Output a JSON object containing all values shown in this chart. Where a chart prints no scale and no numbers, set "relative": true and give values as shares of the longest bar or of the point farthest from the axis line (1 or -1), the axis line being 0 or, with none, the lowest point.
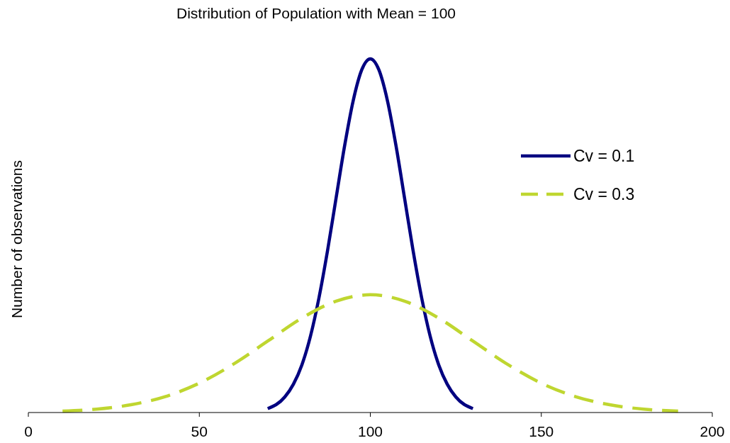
{
  "chart_data": {
    "type": "line",
    "title": "Distribution of Population with Mean = 100",
    "ylabel": "Number of observations",
    "relative": true,
    "xlim": [
      0,
      200
    ],
    "xticks": [
      0,
      50,
      100,
      150,
      200
    ],
    "grid": false,
    "legend": "top right",
    "series": [
      {
        "name": "Cv = 0.1",
        "color": "#000080",
        "line_style": "solid",
        "x": [
          70,
          75,
          77.5,
          80,
          82.5,
          85,
          87.5,
          90,
          92.5,
          95,
          97.5,
          100,
          102.5,
          105,
          107.5,
          110,
          112.5,
          115,
          117.5,
          120,
          122.5,
          125,
          130
        ],
        "values": [
          0.011,
          0.044,
          0.08,
          0.135,
          0.216,
          0.325,
          0.458,
          0.607,
          0.755,
          0.882,
          0.969,
          1,
          0.969,
          0.882,
          0.755,
          0.607,
          0.458,
          0.325,
          0.216,
          0.135,
          0.08,
          0.044,
          0.011
        ]
      },
      {
        "name": "Cv = 0.3",
        "color": "#bfd630",
        "line_style": "dashed",
        "x": [
          10,
          20,
          30,
          40,
          50,
          60,
          70,
          80,
          90,
          100,
          110,
          120,
          130,
          140,
          150,
          160,
          170,
          180,
          190
        ],
        "values": [
          0.004,
          0.0095,
          0.022,
          0.045,
          0.083,
          0.137,
          0.202,
          0.267,
          0.315,
          0.333,
          0.315,
          0.267,
          0.202,
          0.137,
          0.083,
          0.045,
          0.022,
          0.0095,
          0.004
        ]
      }
    ]
  }
}
